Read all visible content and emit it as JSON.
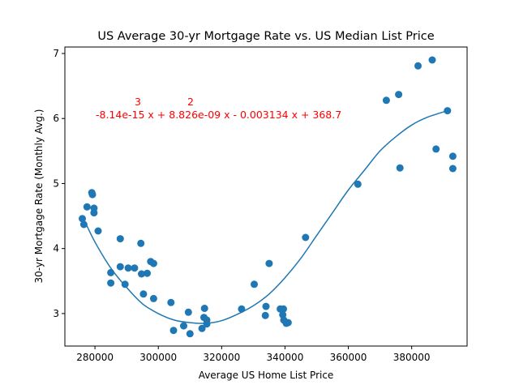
{
  "chart_data": {
    "type": "scatter",
    "title": "US Average 30-yr Mortgage Rate vs. US Median List Price",
    "xlabel": "Average US Home List Price",
    "ylabel": "30-yr Mortgage Rate (Monthly Avg.)",
    "xlim": [
      270500,
      397500
    ],
    "ylim": [
      2.5,
      7.1
    ],
    "xticks": [
      280000,
      300000,
      320000,
      340000,
      360000,
      380000
    ],
    "xtick_labels": [
      "280000",
      "300000",
      "320000",
      "340000",
      "360000",
      "380000"
    ],
    "yticks": [
      3,
      4,
      5,
      6,
      7
    ],
    "ytick_labels": [
      "3",
      "4",
      "5",
      "6",
      "7"
    ],
    "grid": false,
    "colors": {
      "points": "#1f77b4",
      "fit": "#1f77b4",
      "annotation": "#ff0000"
    },
    "points": [
      {
        "x": 276000,
        "y": 4.46
      },
      {
        "x": 276500,
        "y": 4.37
      },
      {
        "x": 277500,
        "y": 4.64
      },
      {
        "x": 279000,
        "y": 4.86
      },
      {
        "x": 279200,
        "y": 4.83
      },
      {
        "x": 279700,
        "y": 4.62
      },
      {
        "x": 279700,
        "y": 4.55
      },
      {
        "x": 281000,
        "y": 4.27
      },
      {
        "x": 285000,
        "y": 3.63
      },
      {
        "x": 285000,
        "y": 3.47
      },
      {
        "x": 288000,
        "y": 4.15
      },
      {
        "x": 288000,
        "y": 3.72
      },
      {
        "x": 289500,
        "y": 3.45
      },
      {
        "x": 290500,
        "y": 3.7
      },
      {
        "x": 292500,
        "y": 3.7
      },
      {
        "x": 294500,
        "y": 4.08
      },
      {
        "x": 294700,
        "y": 3.61
      },
      {
        "x": 295300,
        "y": 3.3
      },
      {
        "x": 296500,
        "y": 3.62
      },
      {
        "x": 297600,
        "y": 3.8
      },
      {
        "x": 298500,
        "y": 3.77
      },
      {
        "x": 298500,
        "y": 3.23
      },
      {
        "x": 304000,
        "y": 3.17
      },
      {
        "x": 304800,
        "y": 2.74
      },
      {
        "x": 308000,
        "y": 2.81
      },
      {
        "x": 309500,
        "y": 3.02
      },
      {
        "x": 310000,
        "y": 2.69
      },
      {
        "x": 313800,
        "y": 2.77
      },
      {
        "x": 314400,
        "y": 2.94
      },
      {
        "x": 314600,
        "y": 3.08
      },
      {
        "x": 315300,
        "y": 2.9
      },
      {
        "x": 315300,
        "y": 2.84
      },
      {
        "x": 326300,
        "y": 3.07
      },
      {
        "x": 330300,
        "y": 3.45
      },
      {
        "x": 334000,
        "y": 3.11
      },
      {
        "x": 333800,
        "y": 2.97
      },
      {
        "x": 335000,
        "y": 3.77
      },
      {
        "x": 338500,
        "y": 3.07
      },
      {
        "x": 339300,
        "y": 2.98
      },
      {
        "x": 339500,
        "y": 3.07
      },
      {
        "x": 339600,
        "y": 2.9
      },
      {
        "x": 340400,
        "y": 2.85
      },
      {
        "x": 341000,
        "y": 2.86
      },
      {
        "x": 346500,
        "y": 4.17
      },
      {
        "x": 363000,
        "y": 4.99
      },
      {
        "x": 372000,
        "y": 6.28
      },
      {
        "x": 375900,
        "y": 6.37
      },
      {
        "x": 376300,
        "y": 5.24
      },
      {
        "x": 382000,
        "y": 6.81
      },
      {
        "x": 386500,
        "y": 6.9
      },
      {
        "x": 387700,
        "y": 5.53
      },
      {
        "x": 391300,
        "y": 6.12
      },
      {
        "x": 393000,
        "y": 5.42
      },
      {
        "x": 393000,
        "y": 5.23
      }
    ],
    "fit": {
      "type": "polynomial",
      "degree": 3,
      "coefficients": [
        -8.14e-15,
        8.826e-09,
        -0.003134,
        368.7
      ],
      "x_range": [
        276000,
        391300
      ],
      "through": [
        {
          "x": 276000,
          "y": 4.5
        },
        {
          "x": 280000,
          "y": 4.1
        },
        {
          "x": 285000,
          "y": 3.7
        },
        {
          "x": 290000,
          "y": 3.4
        },
        {
          "x": 295000,
          "y": 3.15
        },
        {
          "x": 300000,
          "y": 3.0
        },
        {
          "x": 305000,
          "y": 2.9
        },
        {
          "x": 310000,
          "y": 2.86
        },
        {
          "x": 315000,
          "y": 2.85
        },
        {
          "x": 320000,
          "y": 2.89
        },
        {
          "x": 325000,
          "y": 2.99
        },
        {
          "x": 330000,
          "y": 3.12
        },
        {
          "x": 335000,
          "y": 3.3
        },
        {
          "x": 340000,
          "y": 3.55
        },
        {
          "x": 345000,
          "y": 3.85
        },
        {
          "x": 350000,
          "y": 4.2
        },
        {
          "x": 355000,
          "y": 4.55
        },
        {
          "x": 360000,
          "y": 4.9
        },
        {
          "x": 365000,
          "y": 5.2
        },
        {
          "x": 370000,
          "y": 5.5
        },
        {
          "x": 375000,
          "y": 5.72
        },
        {
          "x": 380000,
          "y": 5.9
        },
        {
          "x": 385000,
          "y": 6.02
        },
        {
          "x": 391300,
          "y": 6.12
        }
      ]
    },
    "annotation": {
      "text": "-8.14e-15 x + 8.826e-09 x - 0.003134 x + 368.7",
      "superscripts": [
        "3",
        "2"
      ],
      "x": 279800,
      "y": 6.0
    }
  }
}
